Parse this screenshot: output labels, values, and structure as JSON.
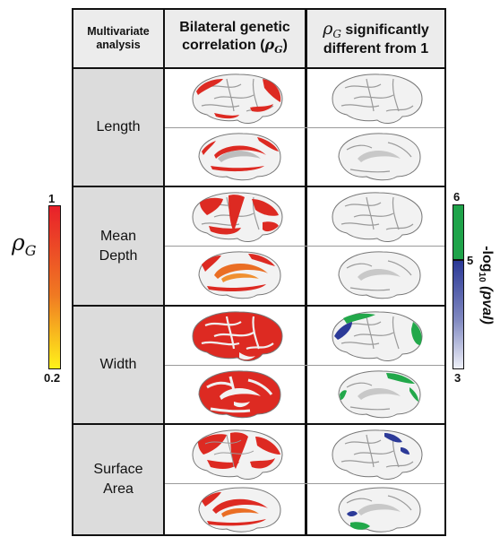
{
  "header": {
    "col1_line1": "Multivariate",
    "col1_line2": "analysis",
    "col2_line1": "Bilateral genetic",
    "col2_line2_a": "correlation (",
    "col2_symbol": "ρ",
    "col2_sub": "G",
    "col2_line2_b": ")",
    "col3_symbol": "ρ",
    "col3_sub": "G",
    "col3_line1_b": " significantly",
    "col3_line2": "different from 1"
  },
  "rows": [
    {
      "label_line1": "Length",
      "label_line2": ""
    },
    {
      "label_line1": "Mean",
      "label_line2": "Depth"
    },
    {
      "label_line1": "Width",
      "label_line2": ""
    },
    {
      "label_line1": "Surface",
      "label_line2": "Area"
    }
  ],
  "left_colorbar": {
    "symbol": "ρ",
    "sub": "G",
    "max_label": "1",
    "min_label": "0.2",
    "color_top": "#e8202a",
    "color_mid": "#f07a22",
    "color_bottom": "#fff21a"
  },
  "right_colorbar": {
    "label_prefix": "-log",
    "label_sub": "10",
    "label_suffix": " (pval)",
    "max_label": "6",
    "mid_label": "5",
    "min_label": "3",
    "color_top": "#1fa34a",
    "color_mid": "#2a3896",
    "color_bottom": "#eef0f8"
  },
  "colors": {
    "red": "#dd2a22",
    "orange": "#ea6e24",
    "green": "#22a84a",
    "blue": "#2c3a98"
  }
}
